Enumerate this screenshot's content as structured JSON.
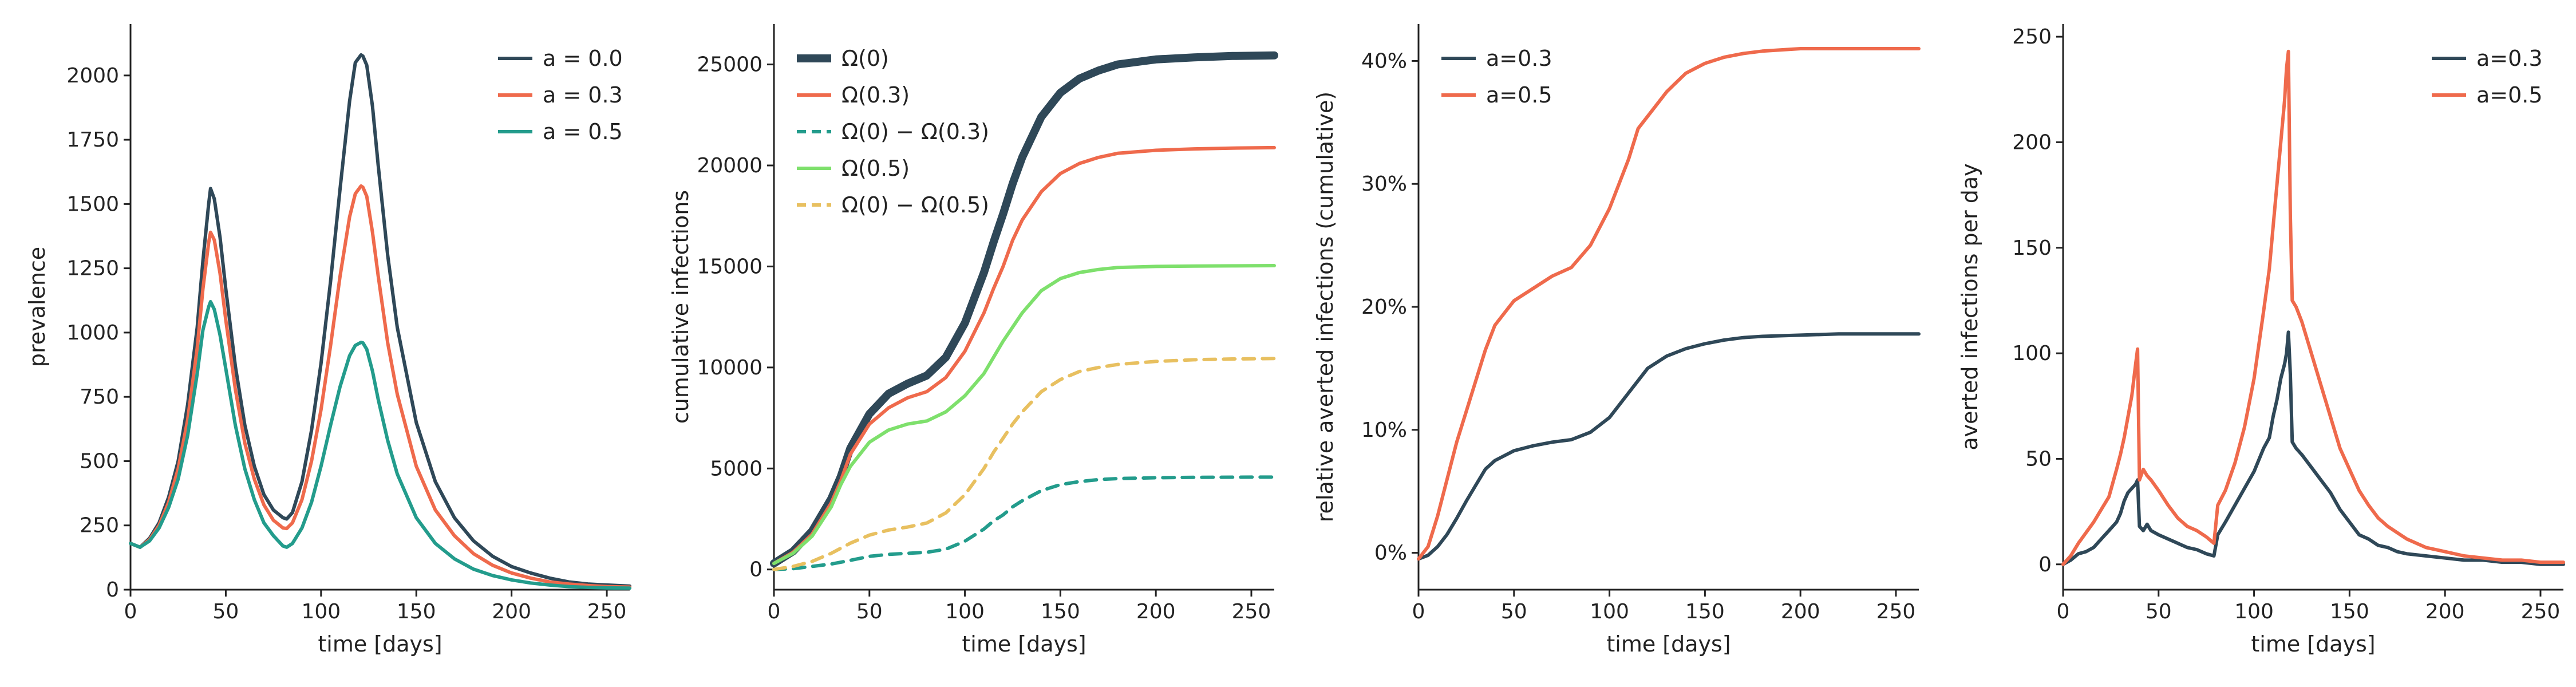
{
  "chart_data": [
    {
      "type": "line",
      "xlabel": "time [days]",
      "ylabel": "prevalence",
      "xlim": [
        0,
        262
      ],
      "ylim": [
        0,
        2200
      ],
      "xticks": [
        0,
        50,
        100,
        150,
        200,
        250
      ],
      "yticks": [
        0,
        250,
        500,
        750,
        1000,
        1250,
        1500,
        1750,
        2000
      ],
      "ytick_format": "plain",
      "legend": "top-right",
      "series": [
        {
          "name": "a = 0.0",
          "color": "#2f4858",
          "dashed": false,
          "thick": false,
          "x": [
            0,
            5,
            10,
            15,
            20,
            25,
            30,
            35,
            38,
            41,
            42,
            44,
            47,
            50,
            55,
            60,
            65,
            70,
            75,
            80,
            82,
            85,
            90,
            95,
            100,
            105,
            110,
            115,
            118,
            121,
            122,
            124,
            127,
            130,
            135,
            140,
            150,
            160,
            170,
            180,
            190,
            200,
            210,
            220,
            230,
            240,
            250,
            262
          ],
          "y": [
            180,
            165,
            200,
            260,
            360,
            500,
            720,
            1020,
            1280,
            1500,
            1560,
            1520,
            1370,
            1170,
            870,
            640,
            480,
            370,
            310,
            280,
            275,
            300,
            420,
            620,
            880,
            1200,
            1560,
            1900,
            2050,
            2080,
            2075,
            2040,
            1880,
            1650,
            1300,
            1020,
            650,
            420,
            280,
            190,
            130,
            90,
            65,
            45,
            30,
            22,
            18,
            14
          ]
        },
        {
          "name": "a = 0.3",
          "color": "#ef6a4c",
          "dashed": false,
          "thick": false,
          "x": [
            0,
            5,
            10,
            15,
            20,
            25,
            30,
            35,
            38,
            41,
            42,
            44,
            47,
            50,
            55,
            60,
            65,
            70,
            75,
            80,
            82,
            85,
            90,
            95,
            100,
            105,
            110,
            115,
            118,
            121,
            122,
            124,
            127,
            130,
            135,
            140,
            150,
            160,
            170,
            180,
            190,
            200,
            210,
            220,
            230,
            240,
            250,
            262
          ],
          "y": [
            180,
            165,
            195,
            250,
            340,
            470,
            660,
            940,
            1170,
            1350,
            1390,
            1360,
            1230,
            1050,
            780,
            570,
            430,
            330,
            270,
            240,
            238,
            260,
            350,
            500,
            700,
            950,
            1220,
            1450,
            1540,
            1570,
            1565,
            1530,
            1390,
            1220,
            960,
            760,
            480,
            310,
            210,
            140,
            95,
            65,
            45,
            30,
            22,
            16,
            12,
            10
          ]
        },
        {
          "name": "a = 0.5",
          "color": "#239c8c",
          "dashed": false,
          "thick": false,
          "x": [
            0,
            5,
            10,
            15,
            20,
            25,
            30,
            35,
            38,
            41,
            42,
            44,
            47,
            50,
            55,
            60,
            65,
            70,
            75,
            80,
            82,
            85,
            90,
            95,
            100,
            105,
            110,
            115,
            118,
            121,
            122,
            124,
            127,
            130,
            135,
            140,
            150,
            160,
            170,
            180,
            190,
            200,
            210,
            220,
            230,
            240,
            250,
            262
          ],
          "y": [
            180,
            165,
            190,
            240,
            320,
            430,
            600,
            840,
            1010,
            1100,
            1120,
            1090,
            990,
            860,
            640,
            470,
            350,
            260,
            210,
            170,
            165,
            180,
            240,
            340,
            480,
            640,
            790,
            910,
            950,
            962,
            960,
            935,
            850,
            740,
            580,
            450,
            280,
            180,
            120,
            80,
            55,
            38,
            26,
            18,
            12,
            9,
            7,
            6
          ]
        }
      ]
    },
    {
      "type": "line",
      "xlabel": "time [days]",
      "ylabel": "cumulative infections",
      "xlim": [
        0,
        262
      ],
      "ylim": [
        -1000,
        27000
      ],
      "xticks": [
        0,
        50,
        100,
        150,
        200,
        250
      ],
      "yticks": [
        0,
        5000,
        10000,
        15000,
        20000,
        25000
      ],
      "ytick_format": "plain",
      "legend": "top-left",
      "series": [
        {
          "name": "Ω(0)",
          "color": "#2f4858",
          "dashed": false,
          "thick": true,
          "x": [
            0,
            10,
            20,
            30,
            35,
            40,
            50,
            60,
            70,
            80,
            90,
            100,
            110,
            115,
            120,
            125,
            130,
            140,
            150,
            160,
            170,
            180,
            200,
            220,
            240,
            262
          ],
          "y": [
            300,
            900,
            1900,
            3500,
            4600,
            6000,
            7700,
            8700,
            9200,
            9600,
            10500,
            12200,
            14700,
            16200,
            17600,
            19100,
            20400,
            22400,
            23600,
            24300,
            24700,
            25000,
            25250,
            25350,
            25420,
            25450
          ]
        },
        {
          "name": "Ω(0.3)",
          "color": "#ef6a4c",
          "dashed": false,
          "thick": false,
          "x": [
            0,
            10,
            20,
            30,
            35,
            40,
            50,
            60,
            70,
            80,
            90,
            100,
            110,
            115,
            120,
            125,
            130,
            140,
            150,
            160,
            170,
            180,
            200,
            220,
            240,
            262
          ],
          "y": [
            300,
            850,
            1750,
            3300,
            4400,
            5700,
            7200,
            8000,
            8500,
            8800,
            9500,
            10800,
            12700,
            13900,
            15000,
            16300,
            17300,
            18700,
            19600,
            20100,
            20400,
            20600,
            20750,
            20820,
            20860,
            20880
          ]
        },
        {
          "name": "Ω(0) − Ω(0.3)",
          "color": "#239c8c",
          "dashed": true,
          "thick": false,
          "x": [
            0,
            10,
            20,
            30,
            40,
            50,
            60,
            70,
            80,
            90,
            100,
            110,
            115,
            120,
            125,
            130,
            140,
            150,
            160,
            170,
            180,
            200,
            220,
            240,
            262
          ],
          "y": [
            0,
            40,
            150,
            270,
            450,
            650,
            750,
            800,
            850,
            1000,
            1400,
            2000,
            2400,
            2700,
            3100,
            3400,
            3900,
            4200,
            4350,
            4450,
            4500,
            4540,
            4560,
            4570,
            4575
          ]
        },
        {
          "name": "Ω(0.5)",
          "color": "#7ee06c",
          "dashed": false,
          "thick": false,
          "x": [
            0,
            10,
            20,
            30,
            35,
            40,
            50,
            60,
            70,
            80,
            90,
            100,
            110,
            115,
            120,
            125,
            130,
            140,
            150,
            160,
            170,
            180,
            200,
            220,
            240,
            262
          ],
          "y": [
            300,
            800,
            1650,
            3100,
            4200,
            5100,
            6300,
            6900,
            7200,
            7350,
            7800,
            8600,
            9700,
            10500,
            11300,
            12000,
            12700,
            13800,
            14400,
            14700,
            14850,
            14950,
            15000,
            15020,
            15030,
            15040
          ]
        },
        {
          "name": "Ω(0) − Ω(0.5)",
          "color": "#e8c060",
          "dashed": true,
          "thick": false,
          "x": [
            0,
            10,
            20,
            30,
            40,
            50,
            60,
            70,
            80,
            90,
            100,
            110,
            115,
            120,
            125,
            130,
            140,
            150,
            160,
            170,
            180,
            200,
            220,
            240,
            262
          ],
          "y": [
            0,
            150,
            400,
            800,
            1300,
            1700,
            1950,
            2100,
            2300,
            2800,
            3700,
            5000,
            5800,
            6500,
            7200,
            7800,
            8800,
            9400,
            9800,
            10000,
            10150,
            10300,
            10380,
            10420,
            10440
          ]
        }
      ]
    },
    {
      "type": "line",
      "xlabel": "time [days]",
      "ylabel": "relative averted infections (cumulative)",
      "xlim": [
        0,
        262
      ],
      "ylim": [
        -0.03,
        0.43
      ],
      "xticks": [
        0,
        50,
        100,
        150,
        200,
        250
      ],
      "yticks": [
        0,
        0.1,
        0.2,
        0.3,
        0.4
      ],
      "ytick_format": "percent",
      "legend": "top-left",
      "series": [
        {
          "name": "a=0.3",
          "color": "#2f4858",
          "dashed": false,
          "thick": false,
          "x": [
            0,
            5,
            10,
            15,
            20,
            25,
            30,
            35,
            40,
            50,
            60,
            70,
            80,
            90,
            100,
            110,
            115,
            120,
            130,
            140,
            150,
            160,
            170,
            180,
            200,
            220,
            240,
            262
          ],
          "y": [
            -0.005,
            -0.002,
            0.005,
            0.015,
            0.028,
            0.042,
            0.055,
            0.068,
            0.075,
            0.083,
            0.087,
            0.09,
            0.092,
            0.098,
            0.11,
            0.13,
            0.14,
            0.15,
            0.16,
            0.166,
            0.17,
            0.173,
            0.175,
            0.176,
            0.177,
            0.178,
            0.178,
            0.178
          ]
        },
        {
          "name": "a=0.5",
          "color": "#ef6a4c",
          "dashed": false,
          "thick": false,
          "x": [
            0,
            5,
            10,
            15,
            20,
            25,
            30,
            35,
            40,
            45,
            50,
            60,
            70,
            80,
            90,
            100,
            110,
            115,
            120,
            130,
            140,
            150,
            160,
            170,
            180,
            200,
            220,
            240,
            262
          ],
          "y": [
            -0.005,
            0.005,
            0.03,
            0.06,
            0.09,
            0.115,
            0.14,
            0.165,
            0.185,
            0.195,
            0.205,
            0.215,
            0.225,
            0.232,
            0.25,
            0.28,
            0.32,
            0.345,
            0.355,
            0.375,
            0.39,
            0.398,
            0.403,
            0.406,
            0.408,
            0.41,
            0.41,
            0.41,
            0.41
          ]
        }
      ]
    },
    {
      "type": "line",
      "xlabel": "time [days]",
      "ylabel": "averted infections per day",
      "xlim": [
        0,
        262
      ],
      "ylim": [
        -12,
        256
      ],
      "xticks": [
        0,
        50,
        100,
        150,
        200,
        250
      ],
      "yticks": [
        0,
        50,
        100,
        150,
        200,
        250
      ],
      "ytick_format": "plain",
      "legend": "top-right",
      "series": [
        {
          "name": "a=0.3",
          "color": "#2f4858",
          "dashed": false,
          "thick": false,
          "x": [
            0,
            4,
            8,
            12,
            16,
            20,
            24,
            28,
            30,
            32,
            34,
            36,
            38,
            39,
            40,
            42,
            44,
            46,
            50,
            55,
            60,
            65,
            70,
            75,
            79,
            81,
            85,
            90,
            95,
            100,
            105,
            108,
            110,
            112,
            114,
            116,
            117,
            118,
            119,
            120,
            122,
            125,
            130,
            135,
            140,
            145,
            150,
            155,
            160,
            165,
            170,
            175,
            180,
            190,
            200,
            210,
            220,
            230,
            240,
            250,
            262
          ],
          "y": [
            0,
            2,
            5,
            6,
            8,
            12,
            16,
            20,
            24,
            30,
            34,
            36,
            38,
            40,
            18,
            16,
            19,
            16,
            14,
            12,
            10,
            8,
            7,
            5,
            4,
            14,
            20,
            28,
            36,
            44,
            55,
            60,
            70,
            78,
            88,
            95,
            100,
            110,
            90,
            58,
            55,
            52,
            46,
            40,
            34,
            26,
            20,
            14,
            12,
            9,
            8,
            6,
            5,
            4,
            3,
            2,
            2,
            1,
            1,
            0,
            0
          ]
        },
        {
          "name": "a=0.5",
          "color": "#ef6a4c",
          "dashed": false,
          "thick": false,
          "x": [
            0,
            4,
            8,
            12,
            16,
            20,
            24,
            28,
            30,
            32,
            34,
            36,
            38,
            39,
            40,
            42,
            44,
            46,
            50,
            55,
            60,
            65,
            70,
            75,
            79,
            81,
            85,
            90,
            95,
            100,
            105,
            108,
            110,
            112,
            114,
            116,
            117,
            118,
            119,
            120,
            122,
            125,
            130,
            135,
            140,
            145,
            150,
            155,
            160,
            165,
            170,
            175,
            180,
            190,
            200,
            210,
            220,
            230,
            240,
            250,
            262
          ],
          "y": [
            0,
            4,
            10,
            15,
            20,
            26,
            32,
            45,
            52,
            60,
            70,
            80,
            95,
            102,
            40,
            45,
            42,
            40,
            35,
            28,
            22,
            18,
            16,
            13,
            10,
            28,
            35,
            48,
            65,
            88,
            120,
            140,
            160,
            180,
            200,
            220,
            235,
            243,
            165,
            125,
            122,
            115,
            100,
            85,
            70,
            55,
            45,
            35,
            28,
            22,
            18,
            15,
            12,
            8,
            6,
            4,
            3,
            2,
            2,
            1,
            1
          ]
        }
      ]
    }
  ]
}
